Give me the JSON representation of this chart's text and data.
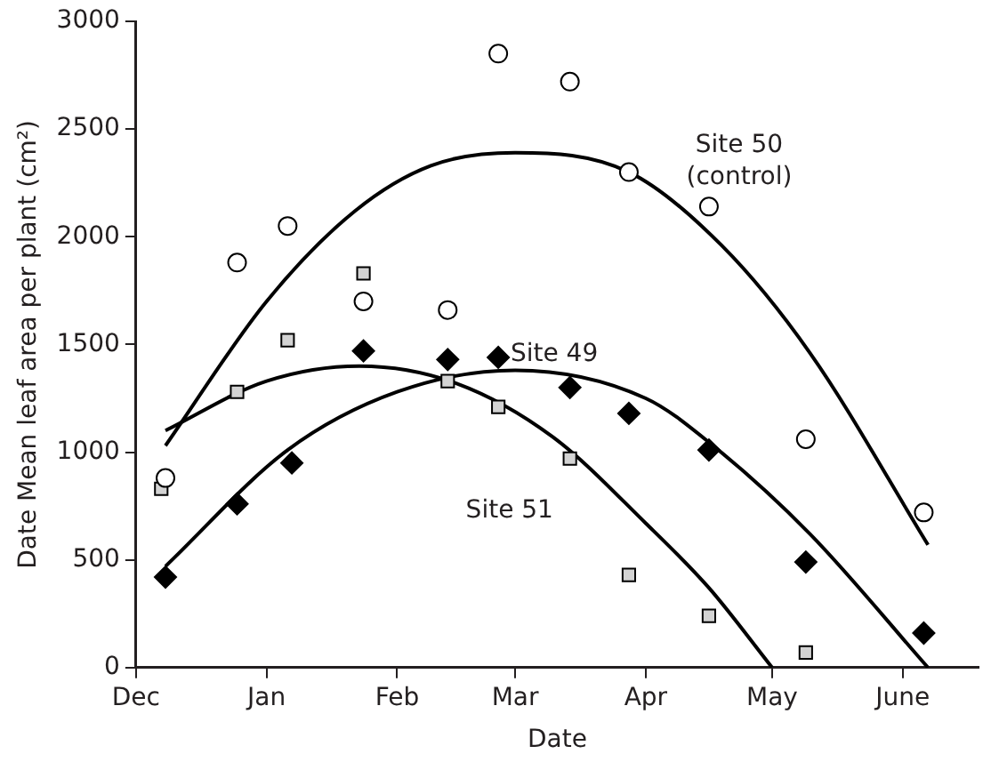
{
  "chart_data": {
    "type": "scatter",
    "xlabel": "Date",
    "ylabel": "Date Mean leaf area per plant (cm²)",
    "xlim": [
      "2000-12-01",
      "2001-06-19"
    ],
    "ylim": [
      0,
      3000
    ],
    "xticks": [
      {
        "value": "2000-12-01",
        "label": "Dec"
      },
      {
        "value": "2001-01-01",
        "label": "Jan"
      },
      {
        "value": "2001-02-01",
        "label": "Feb"
      },
      {
        "value": "2001-03-01",
        "label": "Mar"
      },
      {
        "value": "2001-04-01",
        "label": "Apr"
      },
      {
        "value": "2001-05-01",
        "label": "May"
      },
      {
        "value": "2001-06-01",
        "label": "June"
      }
    ],
    "yticks": [
      0,
      500,
      1000,
      1500,
      2000,
      2500,
      3000
    ],
    "grid": false,
    "legend": false,
    "series": [
      {
        "marker": "circle",
        "color": "#ffffff",
        "x": [
          "2000-12-08",
          "2000-12-25",
          "2001-01-06",
          "2001-01-24",
          "2001-02-13",
          "2001-02-25",
          "2001-03-14",
          "2001-03-28",
          "2001-04-16",
          "2001-05-09",
          "2001-06-06"
        ],
        "values": [
          880,
          1880,
          2050,
          1700,
          1660,
          2850,
          2720,
          2300,
          2140,
          1060,
          720
        ]
      },
      {
        "marker": "square",
        "color": "#d3d3d3",
        "x": [
          "2000-12-07",
          "2000-12-25",
          "2001-01-06",
          "2001-01-24",
          "2001-02-13",
          "2001-02-25",
          "2001-03-14",
          "2001-03-28",
          "2001-04-16",
          "2001-05-09"
        ],
        "values": [
          830,
          1280,
          1520,
          1830,
          1330,
          1210,
          970,
          430,
          240,
          70
        ]
      },
      {
        "marker": "diamond",
        "color": "#000000",
        "x": [
          "2000-12-08",
          "2000-12-25",
          "2001-01-07",
          "2001-01-24",
          "2001-02-13",
          "2001-02-25",
          "2001-03-14",
          "2001-03-28",
          "2001-04-16",
          "2001-05-09",
          "2001-06-06"
        ],
        "values": [
          420,
          760,
          950,
          1470,
          1430,
          1440,
          1300,
          1180,
          1010,
          490,
          160
        ]
      },
      {
        "type": "line",
        "name": "Site 50 (control)",
        "marker": "none",
        "color": "#000000",
        "x": [
          "2000-12-08",
          "2001-01-01",
          "2001-01-22",
          "2001-02-09",
          "2001-03-01",
          "2001-03-28",
          "2001-04-19",
          "2001-05-10",
          "2001-06-07"
        ],
        "values": [
          1030,
          1700,
          2120,
          2330,
          2390,
          2300,
          1960,
          1460,
          570
        ]
      },
      {
        "type": "line",
        "name": "Site 49",
        "marker": "none",
        "color": "#000000",
        "x": [
          "2000-12-08",
          "2001-01-06",
          "2001-02-01",
          "2001-03-01",
          "2001-04-01",
          "2001-04-17",
          "2001-05-10",
          "2001-06-07"
        ],
        "values": [
          470,
          1010,
          1280,
          1380,
          1250,
          1030,
          620,
          0
        ]
      },
      {
        "type": "line",
        "name": "Site 51",
        "marker": "none",
        "color": "#000000",
        "x": [
          "2000-12-08",
          "2001-01-01",
          "2001-01-23",
          "2001-02-15",
          "2001-03-10",
          "2001-04-01",
          "2001-04-16",
          "2001-05-01"
        ],
        "values": [
          1100,
          1330,
          1400,
          1320,
          1070,
          670,
          370,
          0
        ]
      }
    ]
  }
}
